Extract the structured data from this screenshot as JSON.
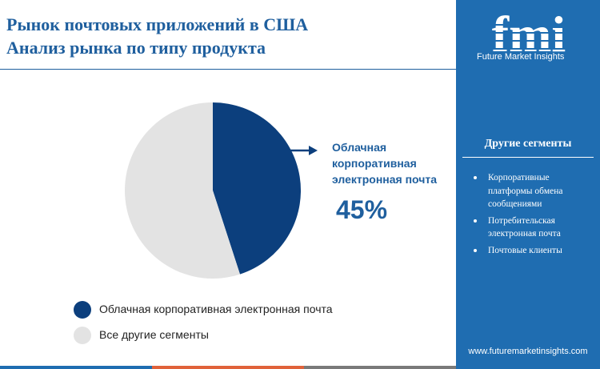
{
  "header": {
    "title_line1": "Рынок почтовых приложений в США",
    "title_line2": "Анализ рынка по типу продукта"
  },
  "brand": {
    "logo_text": "fmi",
    "name": "Future Market Insights",
    "url": "www.futuremarketinsights.com"
  },
  "sidebar": {
    "title": "Другие сегменты",
    "items": [
      "Корпоративные платформы обмена сообщениями",
      "Потребительская электронная почта",
      "Почтовые клиенты"
    ]
  },
  "callout": {
    "label": "Облачная корпоративная электронная почта",
    "value": "45%"
  },
  "colors": {
    "accent": "#1f5f9e",
    "sidebar": "#1f6db1",
    "highlight": "#0c3f7d",
    "other": "#e3e3e3"
  },
  "chart_data": {
    "type": "pie",
    "title": "",
    "slices": [
      {
        "name": "Облачная корпоративная электронная почта",
        "value": 45,
        "color": "#0c3f7d"
      },
      {
        "name": "Все другие сегменты",
        "value": 55,
        "color": "#e3e3e3"
      }
    ],
    "start_angle_deg": 0,
    "direction": "clockwise",
    "legend_position": "bottom-left"
  }
}
